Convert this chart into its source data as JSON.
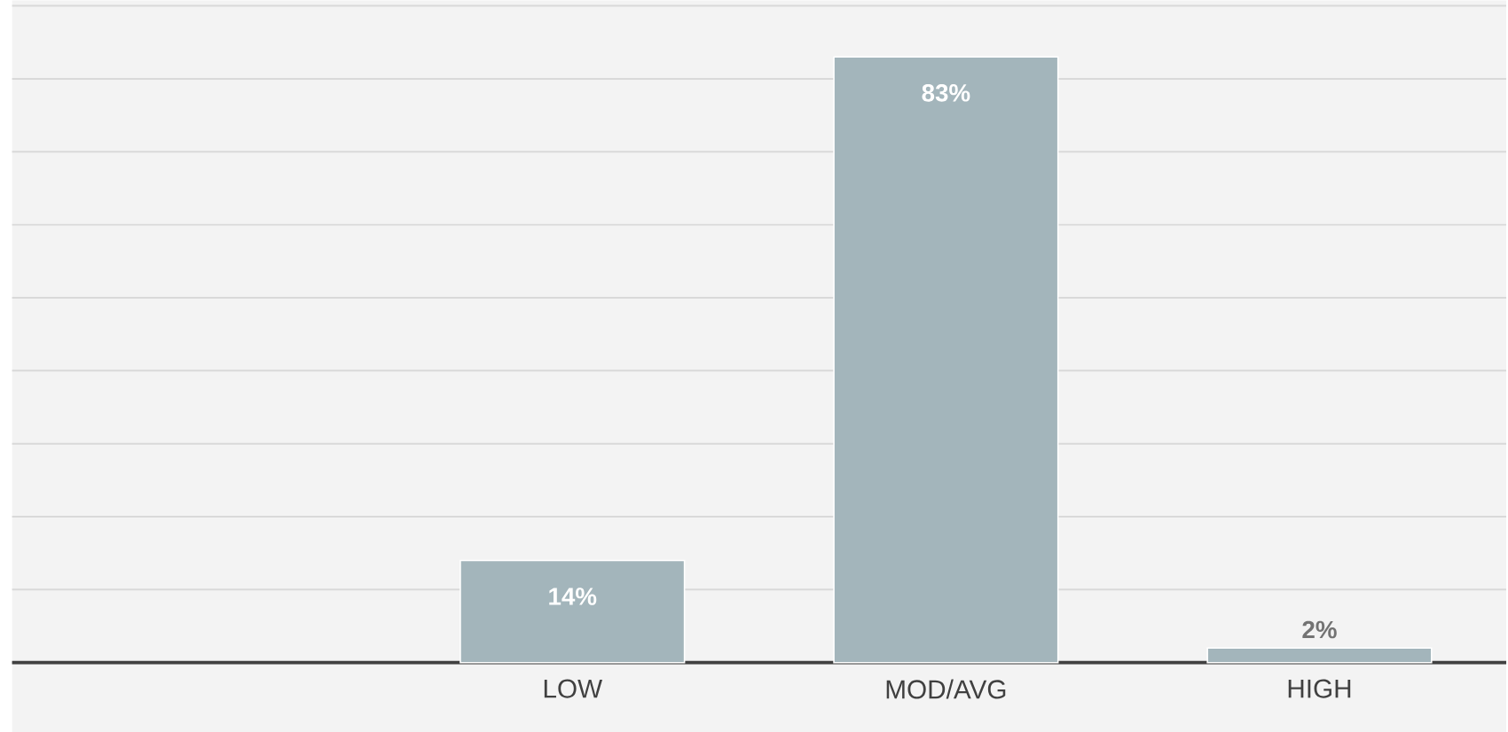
{
  "chart_data": {
    "type": "bar",
    "categories": [
      null,
      "LOW",
      "MOD/AVG",
      "HIGH"
    ],
    "values": [
      null,
      14,
      83,
      2
    ],
    "value_labels": [
      null,
      "14%",
      "83%",
      "2%"
    ],
    "color": "#a3b5bb",
    "ylim": [
      0,
      90
    ],
    "grid": "y"
  }
}
